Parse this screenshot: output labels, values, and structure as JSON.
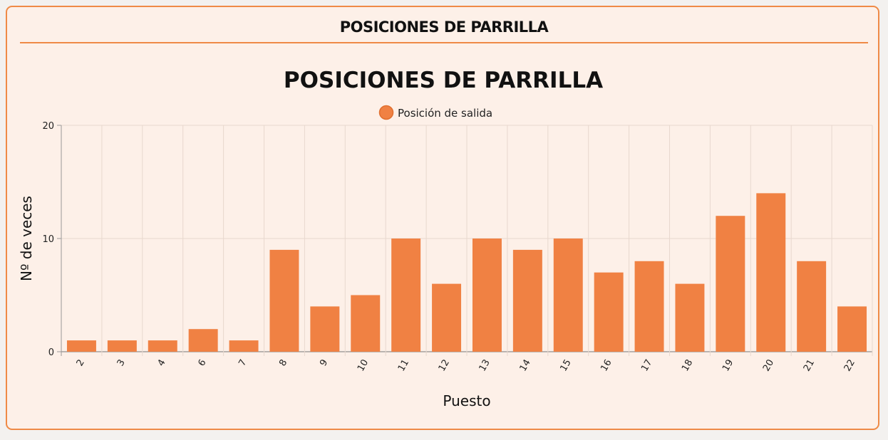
{
  "panel": {
    "title": "POSICIONES DE PARRILLA"
  },
  "colors": {
    "accent": "#ef8a46",
    "bar": "#f08143",
    "panel_bg": "#fdf0e8",
    "grid": "#e8d8ce"
  },
  "chart_data": {
    "type": "bar",
    "title": "POSICIONES DE PARRILLA",
    "xlabel": "Puesto",
    "ylabel": "Nº de veces",
    "categories": [
      "2",
      "3",
      "4",
      "6",
      "7",
      "8",
      "9",
      "10",
      "11",
      "12",
      "13",
      "14",
      "15",
      "16",
      "17",
      "18",
      "19",
      "20",
      "21",
      "22"
    ],
    "series": [
      {
        "name": "Posición de salida",
        "values": [
          1,
          1,
          1,
          2,
          1,
          9,
          4,
          5,
          10,
          6,
          10,
          9,
          10,
          7,
          8,
          6,
          12,
          14,
          8,
          4
        ]
      }
    ],
    "ylim": [
      0,
      20
    ],
    "yticks": [
      0,
      10,
      20
    ],
    "grid": true,
    "legend_position": "top"
  }
}
